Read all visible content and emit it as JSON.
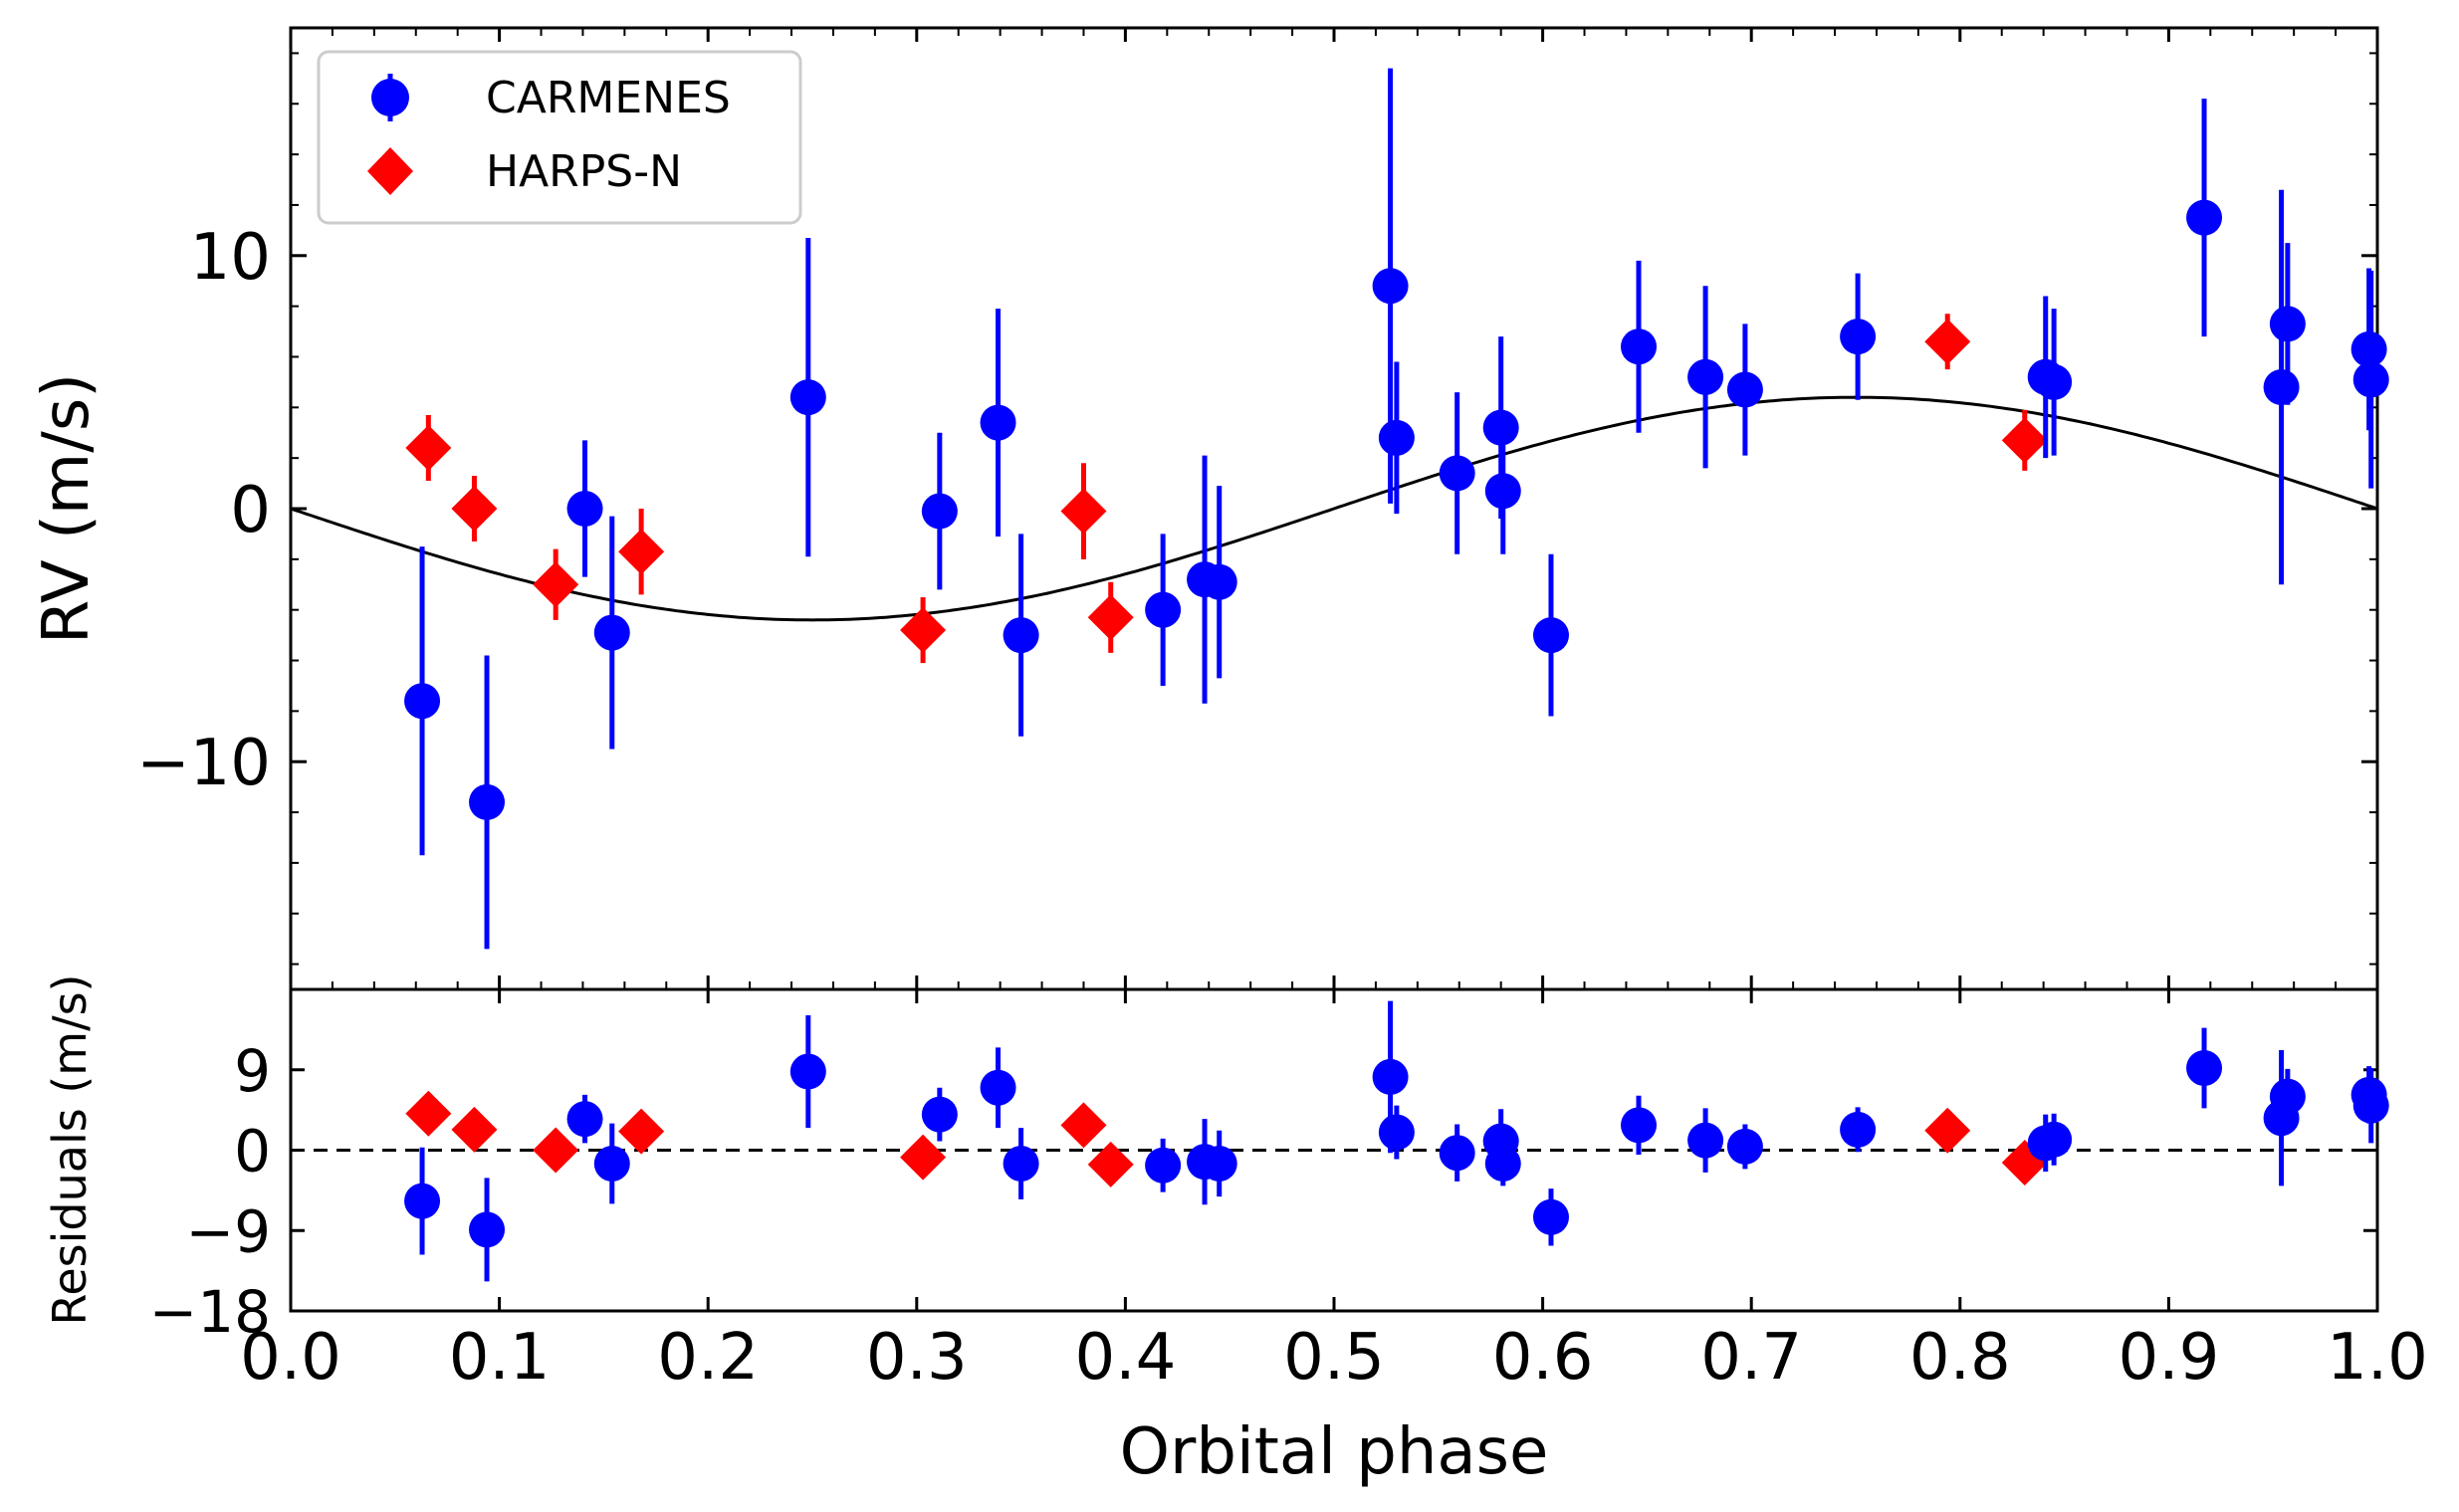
{
  "chart_data": {
    "type": "scatter",
    "x_label": "Orbital phase",
    "x_ticks": [
      "0.0",
      "0.1",
      "0.2",
      "0.3",
      "0.4",
      "0.5",
      "0.6",
      "0.7",
      "0.8",
      "0.9",
      "1.0"
    ],
    "xlim": [
      0,
      1
    ],
    "rv_panel": {
      "ylabel": "RV (m/s)",
      "ylim": [
        -19,
        19
      ],
      "yticks": [
        {
          "value": 10,
          "label": "10"
        },
        {
          "value": 0,
          "label": "0"
        },
        {
          "value": -10,
          "label": "−10"
        }
      ],
      "model": {
        "type": "sine",
        "amplitude": 4.4,
        "phase_of_minimum": 0.25,
        "color": "#000000"
      }
    },
    "residual_panel": {
      "ylabel": "Residuals (m/s)",
      "ylim": [
        -18,
        18
      ],
      "yticks": [
        {
          "value": 9,
          "label": "9"
        },
        {
          "value": 0,
          "label": "0"
        },
        {
          "value": -9,
          "label": "−9"
        },
        {
          "value": -18,
          "label": "−18"
        }
      ],
      "zero_line": "dashed"
    },
    "legend": {
      "position": "top-left",
      "entries": [
        {
          "label": "CARMENES",
          "marker": "circle",
          "color": "#0000ff"
        },
        {
          "label": "HARPS-N",
          "marker": "diamond",
          "color": "#ff0000"
        }
      ]
    },
    "series": [
      {
        "name": "CARMENES",
        "marker": "circle",
        "color": "#0000ff",
        "points": [
          {
            "x": 0.063,
            "y": -7.6,
            "err": 6.1,
            "res": -5.7,
            "res_err": 6.0
          },
          {
            "x": 0.094,
            "y": -11.6,
            "err": 5.8,
            "res": -8.9,
            "res_err": 5.8
          },
          {
            "x": 0.141,
            "y": 0.0,
            "err": 2.7,
            "res": 3.5,
            "res_err": 2.7
          },
          {
            "x": 0.154,
            "y": -4.9,
            "err": 4.6,
            "res": -1.5,
            "res_err": 4.5
          },
          {
            "x": 0.248,
            "y": 4.4,
            "err": 6.3,
            "res": 8.8,
            "res_err": 6.3
          },
          {
            "x": 0.311,
            "y": -0.1,
            "err": 3.1,
            "res": 4.0,
            "res_err": 3.0
          },
          {
            "x": 0.339,
            "y": 3.4,
            "err": 4.5,
            "res": 7.0,
            "res_err": 4.5
          },
          {
            "x": 0.35,
            "y": -5.0,
            "err": 4.0,
            "res": -1.5,
            "res_err": 4.0
          },
          {
            "x": 0.418,
            "y": -4.0,
            "err": 3.0,
            "res": -1.7,
            "res_err": 3.0
          },
          {
            "x": 0.438,
            "y": -2.8,
            "err": 4.9,
            "res": -1.3,
            "res_err": 4.8
          },
          {
            "x": 0.445,
            "y": -2.9,
            "err": 3.8,
            "res": -1.5,
            "res_err": 3.7
          },
          {
            "x": 0.527,
            "y": 8.8,
            "err": 8.6,
            "res": 8.2,
            "res_err": 8.5
          },
          {
            "x": 0.53,
            "y": 2.8,
            "err": 3.0,
            "res": 2.0,
            "res_err": 3.0
          },
          {
            "x": 0.559,
            "y": 1.4,
            "err": 3.2,
            "res": -0.3,
            "res_err": 3.2
          },
          {
            "x": 0.58,
            "y": 3.2,
            "err": 3.6,
            "res": 1.0,
            "res_err": 3.6
          },
          {
            "x": 0.581,
            "y": 0.7,
            "err": 2.5,
            "res": -1.5,
            "res_err": 2.5
          },
          {
            "x": 0.604,
            "y": -5.0,
            "err": 3.2,
            "res": -7.5,
            "res_err": 3.2
          },
          {
            "x": 0.646,
            "y": 6.4,
            "err": 3.4,
            "res": 2.8,
            "res_err": 3.3
          },
          {
            "x": 0.678,
            "y": 5.2,
            "err": 3.6,
            "res": 1.1,
            "res_err": 3.6
          },
          {
            "x": 0.697,
            "y": 4.7,
            "err": 2.6,
            "res": 0.4,
            "res_err": 2.5
          },
          {
            "x": 0.751,
            "y": 6.8,
            "err": 2.5,
            "res": 2.3,
            "res_err": 2.5
          },
          {
            "x": 0.841,
            "y": 5.2,
            "err": 3.2,
            "res": 0.8,
            "res_err": 3.2
          },
          {
            "x": 0.845,
            "y": 5.0,
            "err": 2.9,
            "res": 1.2,
            "res_err": 2.9
          },
          {
            "x": 0.917,
            "y": 11.5,
            "err": 4.7,
            "res": 9.2,
            "res_err": 4.5
          },
          {
            "x": 0.954,
            "y": 4.8,
            "err": 7.8,
            "res": 3.6,
            "res_err": 7.6
          },
          {
            "x": 0.957,
            "y": 7.3,
            "err": 3.2,
            "res": 6.0,
            "res_err": 3.1
          },
          {
            "x": 0.996,
            "y": 6.3,
            "err": 3.2,
            "res": 6.2,
            "res_err": 3.2
          },
          {
            "x": 0.997,
            "y": 5.1,
            "err": 4.3,
            "res": 5.0,
            "res_err": 4.2
          }
        ]
      },
      {
        "name": "HARPS-N",
        "marker": "diamond",
        "color": "#ff0000",
        "points": [
          {
            "x": 0.066,
            "y": 2.4,
            "err": 1.3,
            "res": 4.1,
            "res_err": 1.2
          },
          {
            "x": 0.088,
            "y": 0.0,
            "err": 1.3,
            "res": 2.3,
            "res_err": 1.2
          },
          {
            "x": 0.127,
            "y": -3.0,
            "err": 1.4,
            "res": 0.0,
            "res_err": 1.3
          },
          {
            "x": 0.168,
            "y": -1.7,
            "err": 1.7,
            "res": 2.1,
            "res_err": 1.5
          },
          {
            "x": 0.303,
            "y": -4.8,
            "err": 1.3,
            "res": -0.8,
            "res_err": 1.2
          },
          {
            "x": 0.38,
            "y": -0.1,
            "err": 1.9,
            "res": 2.8,
            "res_err": 1.8
          },
          {
            "x": 0.393,
            "y": -4.3,
            "err": 1.4,
            "res": -1.6,
            "res_err": 1.3
          },
          {
            "x": 0.794,
            "y": 6.6,
            "err": 1.1,
            "res": 2.2,
            "res_err": 1.0
          },
          {
            "x": 0.831,
            "y": 2.7,
            "err": 1.2,
            "res": -1.4,
            "res_err": 1.1
          }
        ]
      }
    ]
  }
}
